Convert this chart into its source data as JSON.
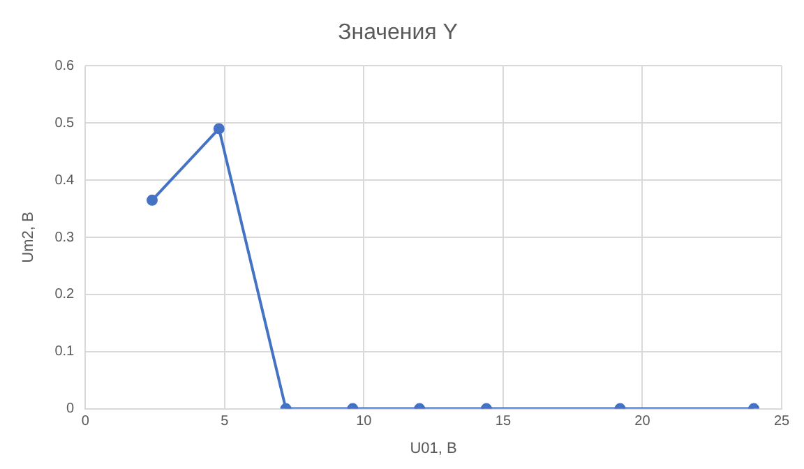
{
  "chart_data": {
    "type": "line",
    "title": "Значения Y",
    "xlabel": "U01, В",
    "ylabel": "Um2, В",
    "x": [
      2.4,
      4.8,
      7.2,
      9.6,
      12,
      14.4,
      19.2,
      24
    ],
    "series": [
      {
        "color": "#4472c4",
        "values": [
          0.365,
          0.49,
          0,
          0,
          0,
          0,
          0,
          0
        ]
      }
    ],
    "xlim": [
      0,
      25
    ],
    "xticks": [
      0,
      5,
      10,
      15,
      20,
      25
    ],
    "ylim": [
      0,
      0.6
    ],
    "yticks": [
      0,
      0.1,
      0.2,
      0.3,
      0.4,
      0.5,
      0.6
    ],
    "grid": true,
    "legend": false,
    "marker": "circle",
    "line_style": "solid"
  }
}
